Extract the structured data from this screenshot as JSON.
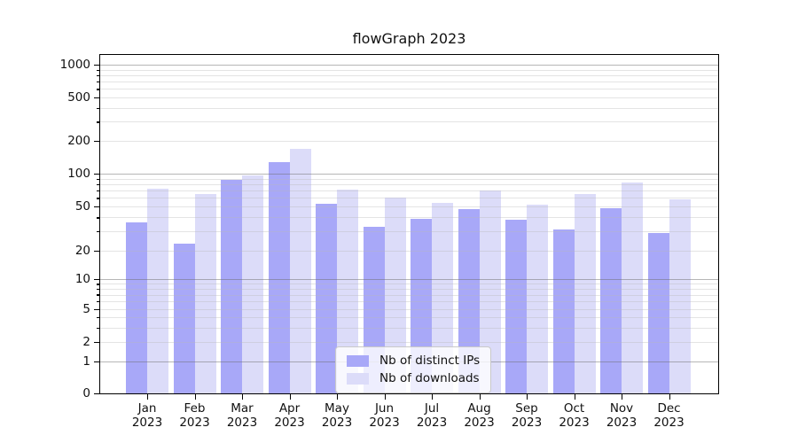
{
  "figure_title": "flowGraph 2023",
  "chart_data": {
    "type": "bar",
    "title": "flowGraph 2023",
    "categories": [
      "Jan 2023",
      "Feb 2023",
      "Mar 2023",
      "Apr 2023",
      "May 2023",
      "Jun 2023",
      "Jul 2023",
      "Aug 2023",
      "Sep 2023",
      "Oct 2023",
      "Nov 2023",
      "Dec 2023"
    ],
    "month_labels": [
      "Jan",
      "Feb",
      "Mar",
      "Apr",
      "May",
      "Jun",
      "Jul",
      "Aug",
      "Sep",
      "Oct",
      "Nov",
      "Dec"
    ],
    "year_label": "2023",
    "series": [
      {
        "name": "Nb of distinct IPs",
        "color": "#a8a8f8",
        "values": [
          36,
          23,
          87,
          127,
          53,
          33,
          39,
          47,
          38,
          31,
          48,
          29
        ]
      },
      {
        "name": "Nb of downloads",
        "color": "#dcdcf9",
        "values": [
          73,
          65,
          97,
          170,
          72,
          60,
          54,
          70,
          52,
          65,
          83,
          58
        ]
      }
    ],
    "xlabel": "",
    "ylabel": "",
    "yscale": "symlog",
    "ylim": [
      0,
      1000
    ],
    "y_tick_labels": [
      "0",
      "1",
      "2",
      "5",
      "10",
      "20",
      "50",
      "100",
      "200",
      "500",
      "1000"
    ],
    "y_tick_values": [
      0,
      1,
      2,
      5,
      10,
      20,
      50,
      100,
      200,
      500,
      1000
    ],
    "y_minor_values": [
      2,
      3,
      4,
      5,
      6,
      7,
      8,
      9,
      20,
      30,
      40,
      50,
      60,
      70,
      80,
      90,
      200,
      300,
      400,
      500,
      600,
      700,
      800,
      900
    ],
    "y_major_values": [
      1,
      10,
      100,
      1000
    ],
    "grid": true,
    "legend_position": "lower center"
  },
  "colors": {
    "series_dark": "#a8a8f8",
    "series_light": "#dcdcf9",
    "axis": "#000000",
    "major_grid": "#b2b2b2",
    "minor_grid": "#e6e6e6",
    "background": "#ffffff",
    "legend_border": "#c9c9c9"
  }
}
